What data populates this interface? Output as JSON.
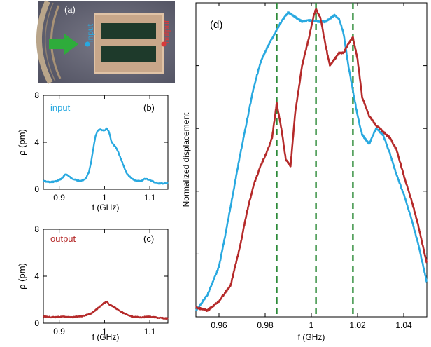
{
  "panel_labels": {
    "a": "(a)",
    "b": "(b)",
    "c": "(c)",
    "d": "(d)"
  },
  "photo": {
    "input_label": "input",
    "output_label": "output"
  },
  "colors": {
    "input": "#29a9e0",
    "output": "#b52a2a",
    "guide": "#2e8b3a",
    "arrow": "#2eac3b"
  },
  "chart_data": [
    {
      "id": "b",
      "type": "line",
      "series_label": "input",
      "xlabel": "f (GHz)",
      "ylabel": "ρ (pm)",
      "xlim": [
        0.865,
        1.14
      ],
      "ylim": [
        0,
        8
      ],
      "xticks": [
        0.9,
        1,
        1.1
      ],
      "xtick_labels": [
        "0.9",
        "1",
        "1.1"
      ],
      "yticks": [
        0,
        4,
        8
      ],
      "ytick_labels": [
        "0",
        "4",
        "8"
      ],
      "series": [
        {
          "name": "input",
          "color": "#29a9e0",
          "x": [
            0.865,
            0.88,
            0.895,
            0.905,
            0.915,
            0.925,
            0.935,
            0.945,
            0.955,
            0.96,
            0.965,
            0.97,
            0.975,
            0.98,
            0.985,
            0.99,
            0.995,
            1.0,
            1.005,
            1.01,
            1.015,
            1.02,
            1.025,
            1.03,
            1.035,
            1.04,
            1.045,
            1.05,
            1.06,
            1.07,
            1.08,
            1.09,
            1.1,
            1.11,
            1.12,
            1.13,
            1.14
          ],
          "y": [
            0.7,
            0.6,
            0.7,
            0.9,
            1.3,
            1.0,
            0.8,
            0.7,
            0.8,
            1.0,
            1.4,
            2.2,
            3.4,
            4.5,
            5.0,
            5.1,
            5.0,
            5.0,
            5.2,
            4.9,
            4.1,
            3.8,
            3.6,
            3.2,
            2.7,
            2.2,
            1.7,
            1.3,
            0.9,
            0.7,
            0.7,
            0.9,
            0.8,
            0.6,
            0.5,
            0.5,
            0.5
          ]
        }
      ]
    },
    {
      "id": "c",
      "type": "line",
      "series_label": "output",
      "xlabel": "f (GHz)",
      "ylabel": "ρ (pm)",
      "xlim": [
        0.865,
        1.14
      ],
      "ylim": [
        0,
        8
      ],
      "xticks": [
        0.9,
        1,
        1.1
      ],
      "xtick_labels": [
        "0.9",
        "1",
        "1.1"
      ],
      "yticks": [
        0,
        4,
        8
      ],
      "ytick_labels": [
        "0",
        "4",
        "8"
      ],
      "series": [
        {
          "name": "output",
          "color": "#b52a2a",
          "x": [
            0.865,
            0.89,
            0.91,
            0.93,
            0.95,
            0.97,
            0.98,
            0.99,
            1.0,
            1.005,
            1.01,
            1.02,
            1.03,
            1.04,
            1.05,
            1.06,
            1.08,
            1.1,
            1.12,
            1.14
          ],
          "y": [
            0.55,
            0.5,
            0.55,
            0.5,
            0.6,
            0.8,
            1.1,
            1.4,
            1.75,
            1.85,
            1.6,
            1.4,
            1.15,
            0.9,
            0.7,
            0.55,
            0.5,
            0.55,
            0.45,
            0.4
          ]
        }
      ]
    },
    {
      "id": "d",
      "type": "line",
      "xlabel": "f (GHz)",
      "ylabel": "Normalized displacement",
      "xlim": [
        0.95,
        1.05
      ],
      "ylim": [
        0,
        1
      ],
      "xticks": [
        0.96,
        0.98,
        1.0,
        1.02,
        1.04
      ],
      "xtick_labels": [
        "0.96",
        "0.98",
        "1",
        "1.02",
        "1.04"
      ],
      "vlines": [
        0.985,
        1.002,
        1.018
      ],
      "series": [
        {
          "name": "input",
          "color": "#29a9e0",
          "x": [
            0.95,
            0.955,
            0.96,
            0.963,
            0.966,
            0.969,
            0.972,
            0.975,
            0.978,
            0.981,
            0.984,
            0.987,
            0.99,
            0.993,
            0.996,
            1.0,
            1.003,
            1.006,
            1.008,
            1.01,
            1.012,
            1.014,
            1.016,
            1.018,
            1.02,
            1.022,
            1.025,
            1.028,
            1.031,
            1.034,
            1.037,
            1.04,
            1.043,
            1.046,
            1.05
          ],
          "y": [
            0.02,
            0.07,
            0.16,
            0.27,
            0.39,
            0.51,
            0.62,
            0.73,
            0.81,
            0.86,
            0.9,
            0.94,
            0.97,
            0.955,
            0.94,
            0.945,
            0.94,
            0.94,
            0.95,
            0.96,
            0.95,
            0.9,
            0.8,
            0.72,
            0.64,
            0.58,
            0.55,
            0.6,
            0.58,
            0.52,
            0.45,
            0.39,
            0.32,
            0.24,
            0.11
          ]
        },
        {
          "name": "output",
          "color": "#b52a2a",
          "x": [
            0.95,
            0.955,
            0.96,
            0.965,
            0.969,
            0.972,
            0.975,
            0.978,
            0.981,
            0.983,
            0.985,
            0.987,
            0.989,
            0.991,
            0.993,
            0.996,
            0.999,
            1.001,
            1.002,
            1.004,
            1.006,
            1.008,
            1.01,
            1.012,
            1.014,
            1.016,
            1.018,
            1.02,
            1.022,
            1.025,
            1.028,
            1.031,
            1.034,
            1.037,
            1.04,
            1.043,
            1.046,
            1.05
          ],
          "y": [
            0.03,
            0.02,
            0.05,
            0.1,
            0.22,
            0.33,
            0.42,
            0.48,
            0.53,
            0.57,
            0.68,
            0.6,
            0.5,
            0.48,
            0.65,
            0.8,
            0.89,
            0.96,
            0.98,
            0.95,
            0.87,
            0.8,
            0.82,
            0.84,
            0.84,
            0.87,
            0.89,
            0.82,
            0.7,
            0.64,
            0.61,
            0.59,
            0.57,
            0.53,
            0.45,
            0.38,
            0.3,
            0.17
          ]
        }
      ]
    }
  ]
}
